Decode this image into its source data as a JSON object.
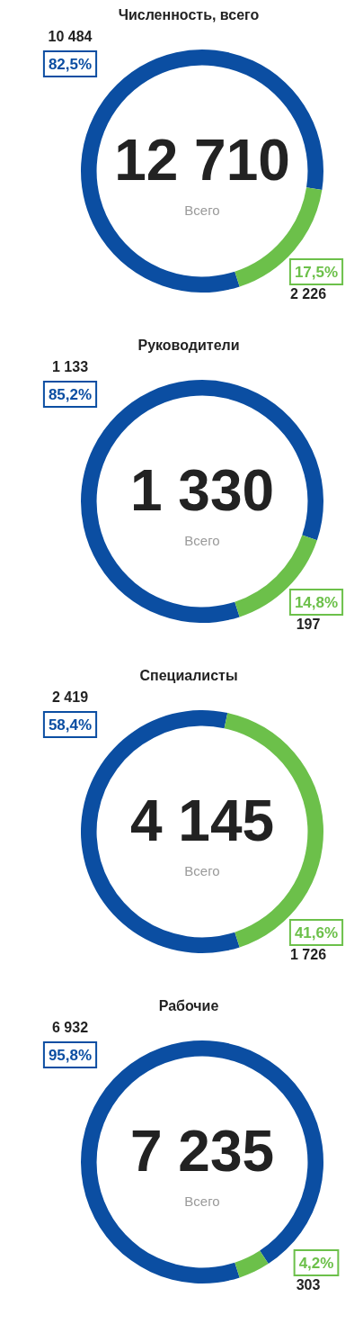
{
  "chart_data": [
    {
      "type": "donut",
      "title": "Численность, всего",
      "categories": [
        null,
        null
      ],
      "values": [
        10484,
        2226
      ],
      "colors": [
        "#0b4ea2",
        "#6cc04a"
      ],
      "value_labels": [
        "10 484",
        "2 226"
      ],
      "annotations": [
        "12 710",
        "Всего",
        "82,5%",
        "17,5%"
      ]
    },
    {
      "type": "donut",
      "title": "Руководители",
      "categories": [
        null,
        null
      ],
      "values": [
        1133,
        197
      ],
      "colors": [
        "#0b4ea2",
        "#6cc04a"
      ],
      "value_labels": [
        "1 133",
        "197"
      ],
      "annotations": [
        "1 330",
        "Всего",
        "85,2%",
        "14,8%"
      ]
    },
    {
      "type": "donut",
      "title": "Специалисты",
      "categories": [
        null,
        null
      ],
      "values": [
        2419,
        1726
      ],
      "colors": [
        "#0b4ea2",
        "#6cc04a"
      ],
      "value_labels": [
        "2 419",
        "1 726"
      ],
      "annotations": [
        "4 145",
        "Всего",
        "58,4%",
        "41,6%"
      ]
    },
    {
      "type": "donut",
      "title": "Рабочие",
      "categories": [
        null,
        null
      ],
      "values": [
        6932,
        303
      ],
      "colors": [
        "#0b4ea2",
        "#6cc04a"
      ],
      "value_labels": [
        "6 932",
        "303"
      ],
      "annotations": [
        "7 235",
        "Всего",
        "95,8%",
        "4,2%"
      ]
    }
  ]
}
